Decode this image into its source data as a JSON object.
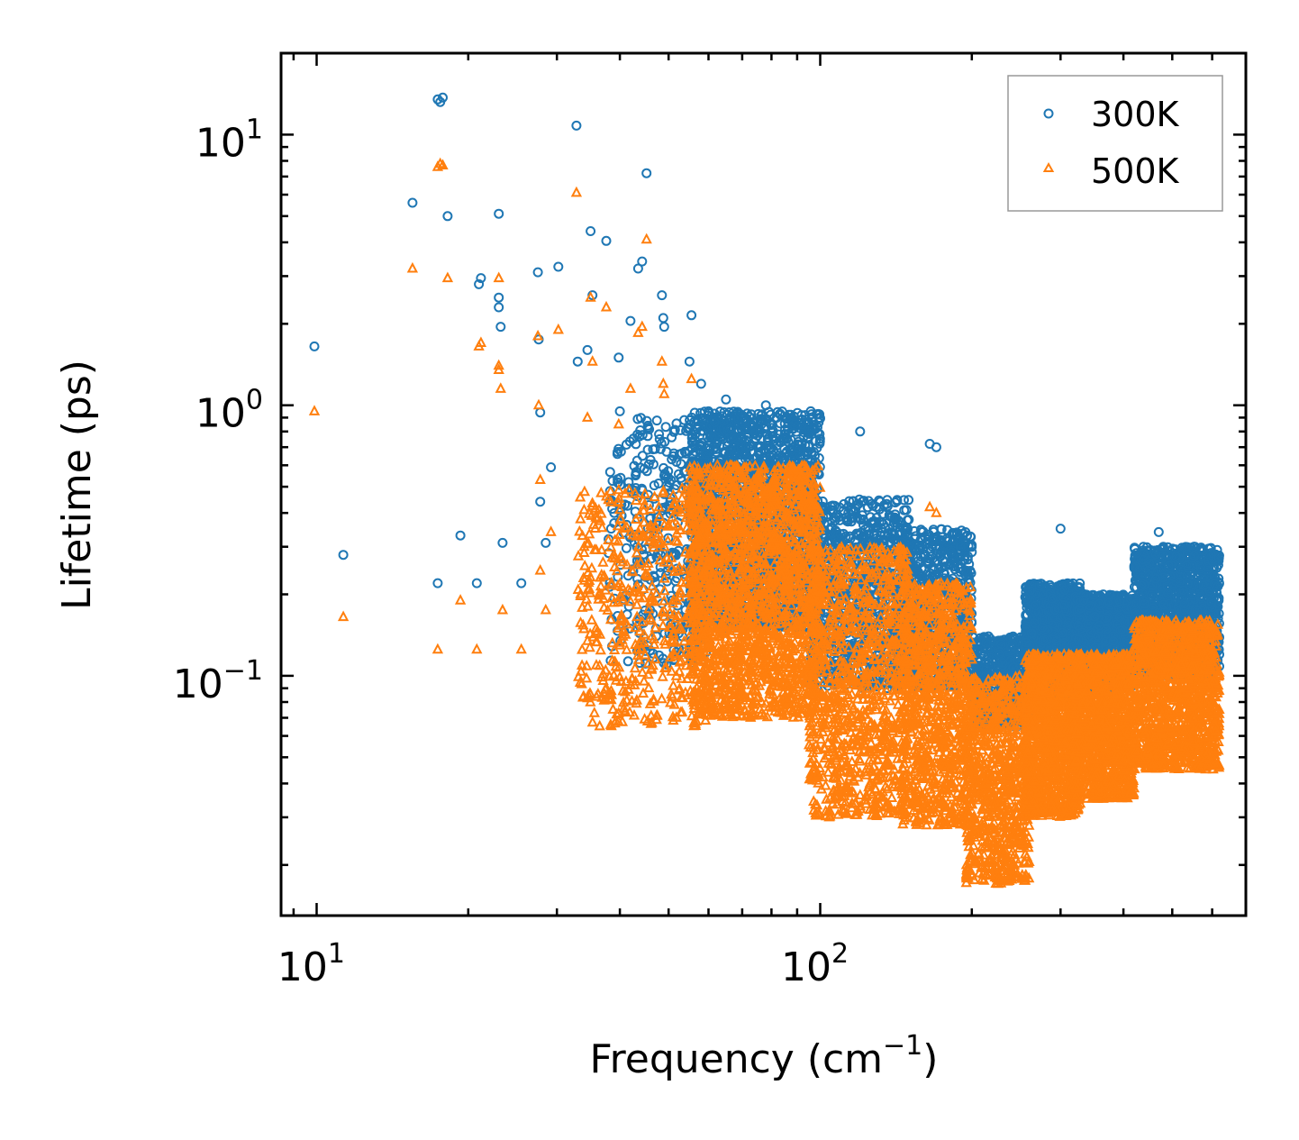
{
  "chart_data": {
    "type": "scatter",
    "title": "",
    "xlabel": "Frequency (cm",
    "xlabel_sup": "−1",
    "xlabel_suffix": ")",
    "ylabel": "Lifetime (ps)",
    "xscale": "log",
    "yscale": "log",
    "xlim": [
      8.5,
      700
    ],
    "ylim": [
      0.013,
      20
    ],
    "x_ticks": [
      {
        "value": 10,
        "base": "10",
        "exp": "1"
      },
      {
        "value": 100,
        "base": "10",
        "exp": "2"
      }
    ],
    "y_ticks": [
      {
        "value": 10,
        "base": "10",
        "exp": "1"
      },
      {
        "value": 1,
        "base": "10",
        "exp": "0"
      },
      {
        "value": 0.1,
        "base": "10",
        "exp": "−1"
      }
    ],
    "legend_position": "top-right",
    "series": [
      {
        "name": "300K",
        "marker": "circle",
        "color": "#1f77b4",
        "points": [
          [
            9.9,
            1.65
          ],
          [
            11.3,
            0.28
          ],
          [
            15.5,
            5.6
          ],
          [
            17.4,
            13.5
          ],
          [
            17.6,
            13.2
          ],
          [
            17.8,
            13.7
          ],
          [
            18.2,
            5.0
          ],
          [
            21.0,
            2.8
          ],
          [
            21.2,
            2.95
          ],
          [
            23.0,
            5.1
          ],
          [
            23.0,
            2.5
          ],
          [
            23.0,
            2.3
          ],
          [
            23.2,
            1.95
          ],
          [
            17.4,
            0.22
          ],
          [
            19.3,
            0.33
          ],
          [
            20.8,
            0.22
          ],
          [
            23.4,
            0.31
          ],
          [
            25.5,
            0.22
          ],
          [
            27.5,
            3.1
          ],
          [
            27.6,
            1.75
          ],
          [
            27.8,
            0.94
          ],
          [
            27.8,
            0.44
          ],
          [
            28.5,
            0.31
          ],
          [
            29.2,
            0.59
          ],
          [
            30.2,
            3.25
          ],
          [
            32.8,
            10.8
          ],
          [
            33.0,
            1.45
          ],
          [
            34.5,
            1.6
          ],
          [
            35.0,
            4.4
          ],
          [
            35.3,
            2.55
          ],
          [
            37.6,
            4.05
          ],
          [
            39.8,
            1.5
          ],
          [
            42.0,
            2.05
          ],
          [
            43.5,
            3.2
          ],
          [
            44.3,
            3.4
          ],
          [
            45.2,
            7.2
          ],
          [
            48.5,
            2.55
          ],
          [
            48.8,
            2.1
          ],
          [
            49.0,
            1.95
          ],
          [
            55.5,
            2.15
          ],
          [
            45.5,
            0.35
          ],
          [
            40.0,
            0.95
          ],
          [
            43.0,
            0.55
          ],
          [
            55.0,
            1.45
          ],
          [
            58.0,
            1.2
          ],
          [
            60.0,
            0.95
          ],
          [
            65.0,
            1.05
          ],
          [
            70.0,
            0.8
          ],
          [
            78.0,
            1.0
          ],
          [
            85.0,
            0.75
          ],
          [
            92.0,
            0.85
          ],
          [
            120.0,
            0.8
          ],
          [
            165.0,
            0.72
          ],
          [
            170.0,
            0.7
          ],
          [
            190.0,
            0.3
          ],
          [
            300.0,
            0.35
          ],
          [
            470.0,
            0.34
          ],
          [
            480.0,
            0.3
          ],
          [
            620.0,
            0.12
          ],
          [
            39.0,
            0.4
          ],
          [
            50.0,
            0.5
          ]
        ],
        "clusters": [
          {
            "x": [
              38,
              60
            ],
            "y": [
              0.11,
              0.9
            ],
            "n": 360
          },
          {
            "x": [
              55,
              100
            ],
            "y": [
              0.15,
              0.95
            ],
            "n": 1800
          },
          {
            "x": [
              95,
              150
            ],
            "y": [
              0.09,
              0.45
            ],
            "n": 900
          },
          {
            "x": [
              145,
              200
            ],
            "y": [
              0.09,
              0.35
            ],
            "n": 700
          },
          {
            "x": [
              200,
              260
            ],
            "y": [
              0.065,
              0.14
            ],
            "n": 500
          },
          {
            "x": [
              255,
              330
            ],
            "y": [
              0.08,
              0.22
            ],
            "n": 1200
          },
          {
            "x": [
              320,
              420
            ],
            "y": [
              0.09,
              0.2
            ],
            "n": 1200
          },
          {
            "x": [
              420,
              620
            ],
            "y": [
              0.1,
              0.3
            ],
            "n": 1300
          }
        ]
      },
      {
        "name": "500K",
        "marker": "triangle",
        "color": "#ff7f0e",
        "points": [
          [
            9.9,
            0.95
          ],
          [
            11.3,
            0.165
          ],
          [
            15.5,
            3.2
          ],
          [
            17.4,
            7.6
          ],
          [
            17.6,
            7.8
          ],
          [
            17.8,
            7.7
          ],
          [
            18.2,
            2.95
          ],
          [
            21.0,
            1.65
          ],
          [
            21.2,
            1.7
          ],
          [
            23.0,
            2.95
          ],
          [
            23.0,
            1.35
          ],
          [
            23.0,
            1.4
          ],
          [
            23.2,
            1.15
          ],
          [
            17.4,
            0.125
          ],
          [
            19.3,
            0.19
          ],
          [
            20.8,
            0.125
          ],
          [
            23.4,
            0.175
          ],
          [
            25.5,
            0.125
          ],
          [
            27.5,
            1.8
          ],
          [
            27.6,
            1.0
          ],
          [
            27.8,
            0.53
          ],
          [
            27.8,
            0.245
          ],
          [
            28.5,
            0.175
          ],
          [
            29.2,
            0.34
          ],
          [
            30.2,
            1.9
          ],
          [
            32.8,
            6.1
          ],
          [
            34.5,
            0.9
          ],
          [
            35.0,
            2.5
          ],
          [
            35.3,
            1.45
          ],
          [
            37.6,
            2.3
          ],
          [
            39.8,
            0.85
          ],
          [
            42.0,
            1.15
          ],
          [
            43.5,
            1.85
          ],
          [
            44.3,
            1.95
          ],
          [
            45.2,
            4.1
          ],
          [
            48.5,
            1.45
          ],
          [
            48.8,
            1.2
          ],
          [
            49.0,
            1.1
          ],
          [
            55.5,
            1.25
          ],
          [
            165.0,
            0.42
          ],
          [
            170.0,
            0.4
          ],
          [
            620.0,
            0.075
          ]
        ],
        "clusters": [
          {
            "x": [
              33,
              60
            ],
            "y": [
              0.065,
              0.5
            ],
            "n": 500
          },
          {
            "x": [
              55,
              100
            ],
            "y": [
              0.07,
              0.6
            ],
            "n": 1900
          },
          {
            "x": [
              95,
              150
            ],
            "y": [
              0.03,
              0.3
            ],
            "n": 1000
          },
          {
            "x": [
              145,
              200
            ],
            "y": [
              0.028,
              0.22
            ],
            "n": 900
          },
          {
            "x": [
              195,
              260
            ],
            "y": [
              0.017,
              0.1
            ],
            "n": 800
          },
          {
            "x": [
              255,
              330
            ],
            "y": [
              0.03,
              0.12
            ],
            "n": 1100
          },
          {
            "x": [
              320,
              420
            ],
            "y": [
              0.035,
              0.12
            ],
            "n": 1100
          },
          {
            "x": [
              420,
              620
            ],
            "y": [
              0.045,
              0.16
            ],
            "n": 1300
          }
        ]
      }
    ]
  }
}
